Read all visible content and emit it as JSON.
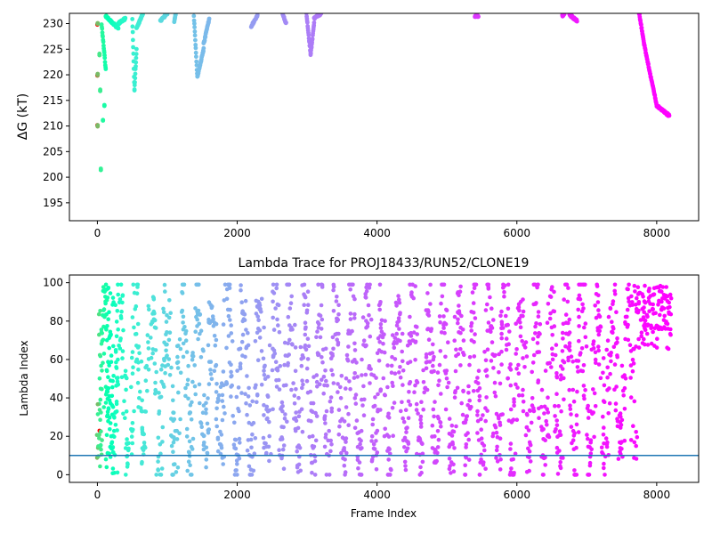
{
  "chart_data": [
    {
      "type": "scatter",
      "title": "",
      "xlabel": "",
      "ylabel": "ΔG (kT)",
      "xlim": [
        -400,
        8600
      ],
      "ylim": [
        191.5,
        232
      ],
      "xticks": [
        0,
        2000,
        4000,
        6000,
        8000
      ],
      "yticks": [
        195,
        200,
        205,
        210,
        215,
        220,
        225,
        230
      ],
      "color_scale": "rainbow-reversed",
      "segments": [
        {
          "x": [
            0,
            5
          ],
          "y": [
            230,
            230
          ]
        },
        {
          "x": [
            0,
            5
          ],
          "y": [
            220,
            220
          ]
        },
        {
          "x": [
            0,
            5
          ],
          "y": [
            210,
            210
          ]
        },
        {
          "x": [
            30,
            30
          ],
          "y": [
            224,
            224
          ]
        },
        {
          "x": [
            40,
            40
          ],
          "y": [
            217,
            217
          ]
        },
        {
          "x": [
            50,
            50
          ],
          "y": [
            201.5,
            201.5
          ]
        },
        {
          "x": [
            60,
            120
          ],
          "y": [
            230,
            221
          ]
        },
        {
          "x": [
            80,
            80
          ],
          "y": [
            211,
            211
          ]
        },
        {
          "x": [
            100,
            100
          ],
          "y": [
            214,
            214
          ]
        },
        {
          "x": [
            120,
            300
          ],
          "y": [
            231.5,
            229
          ]
        },
        {
          "x": [
            300,
            400
          ],
          "y": [
            230,
            231
          ]
        },
        {
          "x": [
            500,
            530
          ],
          "y": [
            231,
            217
          ]
        },
        {
          "x": [
            530,
            560
          ],
          "y": [
            217,
            225
          ]
        },
        {
          "x": [
            560,
            650
          ],
          "y": [
            229,
            232
          ]
        },
        {
          "x": [
            900,
            1000
          ],
          "y": [
            230.5,
            232
          ]
        },
        {
          "x": [
            1100,
            1120
          ],
          "y": [
            230.5,
            232
          ]
        },
        {
          "x": [
            1380,
            1430
          ],
          "y": [
            231.5,
            219.5
          ]
        },
        {
          "x": [
            1430,
            1520
          ],
          "y": [
            219.5,
            225
          ]
        },
        {
          "x": [
            1520,
            1600
          ],
          "y": [
            226,
            231
          ]
        },
        {
          "x": [
            2200,
            2290
          ],
          "y": [
            229.5,
            231.5
          ]
        },
        {
          "x": [
            2650,
            2700
          ],
          "y": [
            232,
            230
          ]
        },
        {
          "x": [
            2990,
            3050
          ],
          "y": [
            232,
            224
          ]
        },
        {
          "x": [
            3050,
            3100
          ],
          "y": [
            224,
            230
          ]
        },
        {
          "x": [
            3100,
            3200
          ],
          "y": [
            231,
            232
          ]
        },
        {
          "x": [
            5400,
            5450
          ],
          "y": [
            231.5,
            231.5
          ]
        },
        {
          "x": [
            6650,
            6680
          ],
          "y": [
            231.5,
            232
          ]
        },
        {
          "x": [
            6750,
            6860
          ],
          "y": [
            231.8,
            230.5
          ]
        },
        {
          "x": [
            7750,
            7820
          ],
          "y": [
            232,
            226
          ]
        },
        {
          "x": [
            7820,
            8000
          ],
          "y": [
            226,
            214
          ]
        },
        {
          "x": [
            8000,
            8180
          ],
          "y": [
            214,
            212
          ]
        }
      ]
    },
    {
      "type": "scatter",
      "title": "Lambda Trace for PROJ18433/RUN52/CLONE19",
      "xlabel": "Frame Index",
      "ylabel": "Lambda Index",
      "xlim": [
        -400,
        8600
      ],
      "ylim": [
        -4,
        104
      ],
      "xticks": [
        0,
        2000,
        4000,
        6000,
        8000
      ],
      "yticks": [
        0,
        20,
        40,
        60,
        80,
        100
      ],
      "color_scale": "rainbow-reversed",
      "hline": {
        "y": 10,
        "color": "#1f77b4"
      },
      "frames": [
        0,
        8200
      ],
      "lambda_range": [
        0,
        99
      ],
      "dense_cluster": {
        "x": [
          7700,
          8200
        ],
        "y": [
          65,
          99
        ]
      }
    }
  ]
}
